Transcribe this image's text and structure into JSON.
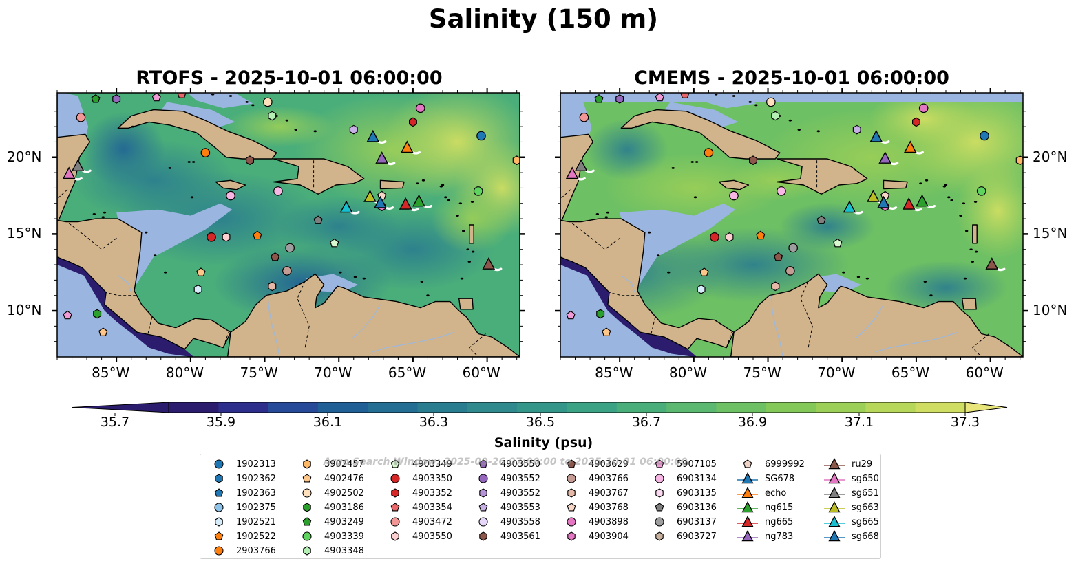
{
  "title": "Salinity (150 m)",
  "panels": [
    {
      "id": "rtofs",
      "title": "RTOFS - 2025-10-01 06:00:00"
    },
    {
      "id": "cmems",
      "title": "CMEMS - 2025-10-01 06:00:00"
    }
  ],
  "map": {
    "lon_range": [
      -89,
      -57.8
    ],
    "lat_range": [
      7,
      24.2
    ],
    "lon_ticks": [
      "85°W",
      "80°W",
      "75°W",
      "70°W",
      "65°W",
      "60°W"
    ],
    "lat_ticks": [
      "20°N",
      "15°N",
      "10°N"
    ],
    "colors": {
      "land": "#d2b48c",
      "shelf": "#99b5e0",
      "deep_pacific": "#2b1c6e",
      "coast": "#000000"
    }
  },
  "colorbar": {
    "label": "Salinity (psu)",
    "min": 35.7,
    "max": 37.3,
    "step": 0.1,
    "tick_labels": [
      "35.7",
      "35.9",
      "36.1",
      "36.3",
      "36.5",
      "36.7",
      "36.9",
      "37.1",
      "37.3"
    ],
    "colors": [
      "#2b1c6e",
      "#2d2d8c",
      "#274a98",
      "#1f5f96",
      "#236e92",
      "#2a7c8f",
      "#30898c",
      "#349688",
      "#3ba384",
      "#4aae7a",
      "#5ab870",
      "#6ec064",
      "#84c85a",
      "#9ccf57",
      "#b6d75a",
      "#cfde62"
    ]
  },
  "watermark": "Argo Search Window: 2025-09-26 07:00:00 to 2025-10-01 06:00:00",
  "legend": {
    "columns": [
      [
        {
          "label": "1902313",
          "marker": "circle",
          "color": "#1f77b4"
        },
        {
          "label": "1902362",
          "marker": "hexagon",
          "color": "#1f77b4"
        },
        {
          "label": "1902363",
          "marker": "pentagon",
          "color": "#1f77b4"
        },
        {
          "label": "1902375",
          "marker": "circle",
          "color": "#8fc4ea"
        },
        {
          "label": "1902521",
          "marker": "hexagon",
          "color": "#d6ecfa"
        },
        {
          "label": "1902522",
          "marker": "pentagon",
          "color": "#ff7f0e"
        },
        {
          "label": "2903766",
          "marker": "circle",
          "color": "#ff7f0e"
        }
      ],
      [
        {
          "label": "3902457",
          "marker": "hexagon",
          "color": "#ffb866"
        },
        {
          "label": "4902476",
          "marker": "pentagon",
          "color": "#ffc68a"
        },
        {
          "label": "4902502",
          "marker": "circle",
          "color": "#ffe0bd"
        },
        {
          "label": "4903186",
          "marker": "hexagon",
          "color": "#2ca02c"
        },
        {
          "label": "4903249",
          "marker": "pentagon",
          "color": "#2ca02c"
        },
        {
          "label": "4903339",
          "marker": "circle",
          "color": "#5fd35f"
        },
        {
          "label": "4903348",
          "marker": "hexagon",
          "color": "#b4f0b4"
        }
      ],
      [
        {
          "label": "4903349",
          "marker": "pentagon",
          "color": "#d8f8d0"
        },
        {
          "label": "4903350",
          "marker": "circle",
          "color": "#d62728"
        },
        {
          "label": "4903352",
          "marker": "hexagon",
          "color": "#d62728"
        },
        {
          "label": "4903354",
          "marker": "pentagon",
          "color": "#e8676a"
        },
        {
          "label": "4903472",
          "marker": "circle",
          "color": "#f29696"
        },
        {
          "label": "4903550",
          "marker": "hexagon",
          "color": "#fcd0d0"
        }
      ],
      [
        {
          "label": "4903550",
          "marker": "pentagon",
          "color": "#9467bd"
        },
        {
          "label": "4903552",
          "marker": "circle",
          "color": "#9467bd"
        },
        {
          "label": "4903552",
          "marker": "hexagon",
          "color": "#b393d6"
        },
        {
          "label": "4903553",
          "marker": "pentagon",
          "color": "#c7b0e6"
        },
        {
          "label": "4903558",
          "marker": "circle",
          "color": "#e6d6f7"
        },
        {
          "label": "4903561",
          "marker": "hexagon",
          "color": "#8c564b"
        }
      ],
      [
        {
          "label": "4903629",
          "marker": "pentagon",
          "color": "#8c564b"
        },
        {
          "label": "4903766",
          "marker": "circle",
          "color": "#c49c94"
        },
        {
          "label": "4903767",
          "marker": "hexagon",
          "color": "#e6b8a8"
        },
        {
          "label": "4903768",
          "marker": "pentagon",
          "color": "#f7d7c8"
        },
        {
          "label": "4903898",
          "marker": "circle",
          "color": "#e377c2"
        },
        {
          "label": "4903904",
          "marker": "hexagon",
          "color": "#e377c2"
        }
      ],
      [
        {
          "label": "5907105",
          "marker": "pentagon",
          "color": "#f29ad6"
        },
        {
          "label": "6903134",
          "marker": "circle",
          "color": "#f7b6e3"
        },
        {
          "label": "6903135",
          "marker": "hexagon",
          "color": "#fbd9f0"
        },
        {
          "label": "6903136",
          "marker": "pentagon",
          "color": "#7f7f7f"
        },
        {
          "label": "6903137",
          "marker": "circle",
          "color": "#9e9e9e"
        },
        {
          "label": "6903727",
          "marker": "hexagon",
          "color": "#c7b09c"
        }
      ],
      [
        {
          "label": "6999992",
          "marker": "pentagon",
          "color": "#f0d3c8"
        },
        {
          "label": "SG678",
          "marker": "triangle",
          "color": "#1f77b4"
        },
        {
          "label": "echo",
          "marker": "triangle",
          "color": "#ff7f0e"
        },
        {
          "label": "ng615",
          "marker": "triangle",
          "color": "#2ca02c"
        },
        {
          "label": "ng665",
          "marker": "triangle",
          "color": "#d62728"
        },
        {
          "label": "ng783",
          "marker": "triangle",
          "color": "#9467bd"
        }
      ],
      [
        {
          "label": "ru29",
          "marker": "triangle",
          "color": "#8c564b"
        },
        {
          "label": "sg650",
          "marker": "triangle",
          "color": "#e377c2"
        },
        {
          "label": "sg651",
          "marker": "triangle",
          "color": "#7f7f7f"
        },
        {
          "label": "sg663",
          "marker": "triangle",
          "color": "#bcbd22"
        },
        {
          "label": "sg665",
          "marker": "triangle",
          "color": "#17becf"
        },
        {
          "label": "sg668",
          "marker": "triangle",
          "color": "#1f77b4"
        }
      ]
    ]
  },
  "observations": [
    {
      "lon": -86.4,
      "lat": 23.8,
      "marker": "pentagon",
      "color": "#2ca02c"
    },
    {
      "lon": -85.0,
      "lat": 23.8,
      "marker": "hexagon",
      "color": "#9467bd"
    },
    {
      "lon": -82.3,
      "lat": 23.9,
      "marker": "pentagon",
      "color": "#f29ad6"
    },
    {
      "lon": -80.6,
      "lat": 24.1,
      "marker": "pentagon",
      "color": "#e8676a"
    },
    {
      "lon": -74.8,
      "lat": 23.6,
      "marker": "circle",
      "color": "#ffe0bd"
    },
    {
      "lon": -74.5,
      "lat": 22.7,
      "marker": "hexagon",
      "color": "#b4f0b4"
    },
    {
      "lon": -87.4,
      "lat": 22.6,
      "marker": "circle",
      "color": "#f29696"
    },
    {
      "lon": -64.5,
      "lat": 23.2,
      "marker": "circle",
      "color": "#e377c2"
    },
    {
      "lon": -65.0,
      "lat": 22.3,
      "marker": "hexagon",
      "color": "#d62728"
    },
    {
      "lon": -69.0,
      "lat": 21.8,
      "marker": "hexagon",
      "color": "#c7b0e6"
    },
    {
      "lon": -60.4,
      "lat": 21.4,
      "marker": "circle",
      "color": "#1f77b4"
    },
    {
      "lon": -79.0,
      "lat": 20.3,
      "marker": "circle",
      "color": "#ff7f0e"
    },
    {
      "lon": -76.0,
      "lat": 19.8,
      "marker": "hexagon",
      "color": "#8c564b"
    },
    {
      "lon": -58.0,
      "lat": 19.8,
      "marker": "hexagon",
      "color": "#ffb866"
    },
    {
      "lon": -60.6,
      "lat": 17.8,
      "marker": "circle",
      "color": "#5fd35f"
    },
    {
      "lon": -77.3,
      "lat": 17.5,
      "marker": "circle",
      "color": "#f7b6e3"
    },
    {
      "lon": -74.1,
      "lat": 17.8,
      "marker": "circle",
      "color": "#f7b6e3"
    },
    {
      "lon": -67.1,
      "lat": 17.5,
      "marker": "pentagon",
      "color": "#f7d7c8"
    },
    {
      "lon": -67.1,
      "lat": 16.8,
      "marker": "hexagon",
      "color": "#e377c2"
    },
    {
      "lon": -78.6,
      "lat": 14.8,
      "marker": "circle",
      "color": "#d62728"
    },
    {
      "lon": -77.6,
      "lat": 14.8,
      "marker": "hexagon",
      "color": "#fcd0d0"
    },
    {
      "lon": -75.5,
      "lat": 14.9,
      "marker": "pentagon",
      "color": "#ff7f0e"
    },
    {
      "lon": -71.4,
      "lat": 15.9,
      "marker": "pentagon",
      "color": "#7f7f7f"
    },
    {
      "lon": -73.3,
      "lat": 14.1,
      "marker": "circle",
      "color": "#9e9e9e"
    },
    {
      "lon": -70.3,
      "lat": 14.4,
      "marker": "pentagon",
      "color": "#d8f8d0"
    },
    {
      "lon": -74.3,
      "lat": 13.5,
      "marker": "pentagon",
      "color": "#8c564b"
    },
    {
      "lon": -73.5,
      "lat": 12.6,
      "marker": "circle",
      "color": "#c49c94"
    },
    {
      "lon": -79.3,
      "lat": 12.5,
      "marker": "pentagon",
      "color": "#ffc68a"
    },
    {
      "lon": -74.5,
      "lat": 11.6,
      "marker": "hexagon",
      "color": "#e6b8a8"
    },
    {
      "lon": -79.5,
      "lat": 11.4,
      "marker": "hexagon",
      "color": "#d6ecfa"
    },
    {
      "lon": -88.3,
      "lat": 9.7,
      "marker": "pentagon",
      "color": "#f29ad6"
    },
    {
      "lon": -86.3,
      "lat": 9.8,
      "marker": "hexagon",
      "color": "#2ca02c"
    },
    {
      "lon": -85.9,
      "lat": 8.6,
      "marker": "pentagon",
      "color": "#ffc68a"
    }
  ],
  "gliders": [
    {
      "lon": -67.7,
      "lat": 21.3,
      "color": "#1f77b4"
    },
    {
      "lon": -65.4,
      "lat": 20.6,
      "color": "#ff7f0e"
    },
    {
      "lon": -67.1,
      "lat": 19.9,
      "color": "#9467bd"
    },
    {
      "lon": -87.6,
      "lat": 19.4,
      "color": "#7f7f7f"
    },
    {
      "lon": -88.2,
      "lat": 18.9,
      "color": "#e377c2"
    },
    {
      "lon": -67.9,
      "lat": 17.4,
      "color": "#bcbd22"
    },
    {
      "lon": -69.5,
      "lat": 16.7,
      "color": "#17becf"
    },
    {
      "lon": -67.2,
      "lat": 17.0,
      "color": "#1f77b4"
    },
    {
      "lon": -65.5,
      "lat": 16.9,
      "color": "#d62728"
    },
    {
      "lon": -64.6,
      "lat": 17.1,
      "color": "#2ca02c"
    },
    {
      "lon": -59.9,
      "lat": 13.0,
      "color": "#8c564b"
    }
  ]
}
